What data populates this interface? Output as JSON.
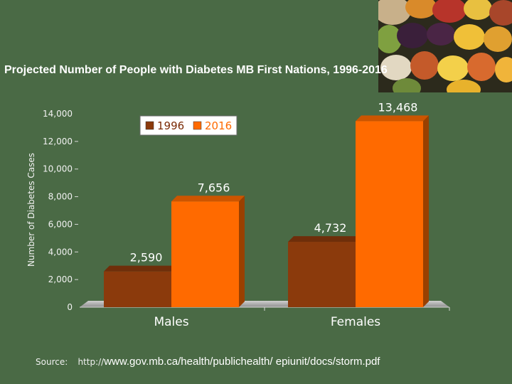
{
  "page": {
    "title": "Projected Number of People with Diabetes MB First Nations, 1996-2016",
    "source_label": "Source:",
    "source_protocol": "http://",
    "source_url": "www.gov.mb.ca/health/publichealth/ epiunit/docs/storm.pdf"
  },
  "colors": {
    "background": "#4a6a45",
    "series_1996": "#8b3a0c",
    "series_2016": "#ff6a00"
  },
  "chart_data": {
    "type": "bar",
    "title": "Projected Number of People with Diabetes MB First Nations, 1996-2016",
    "xlabel": "",
    "ylabel": "Number of Diabetes Cases",
    "categories": [
      "Males",
      "Females"
    ],
    "series": [
      {
        "name": "1996",
        "values": [
          2590,
          4732
        ],
        "labels": [
          "2,590",
          "4,732"
        ]
      },
      {
        "name": "2016",
        "values": [
          7656,
          13468
        ],
        "labels": [
          "7,656",
          "13,468"
        ]
      }
    ],
    "ylim": [
      0,
      14000
    ],
    "yticks": [
      {
        "value": 0,
        "label": "0"
      },
      {
        "value": 2000,
        "label": "2,000"
      },
      {
        "value": 4000,
        "label": "4,000"
      },
      {
        "value": 6000,
        "label": "6,000"
      },
      {
        "value": 8000,
        "label": "8,000"
      },
      {
        "value": 10000,
        "label": "10,000"
      },
      {
        "value": 12000,
        "label": "12,000"
      },
      {
        "value": 14000,
        "label": "14,000"
      }
    ],
    "grid": false,
    "legend": "top-left"
  }
}
